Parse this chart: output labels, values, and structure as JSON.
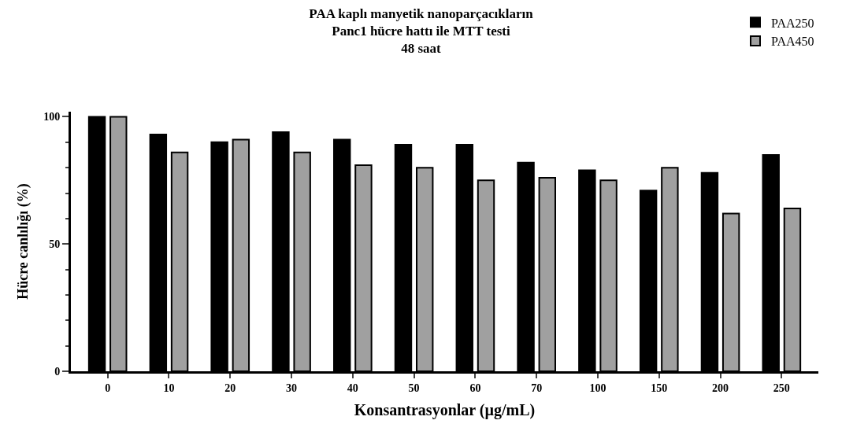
{
  "chart_data": {
    "type": "bar",
    "title": "PAA kaplı manyetik nanoparçacıkların\nPanc1 hücre hattı ile MTT testi\n48 saat",
    "xlabel": "Konsantrasyonlar (µg/mL)",
    "ylabel": "Hücre canlılığı (%)",
    "categories": [
      "0",
      "10",
      "20",
      "30",
      "40",
      "50",
      "60",
      "70",
      "100",
      "150",
      "200",
      "250"
    ],
    "series": [
      {
        "name": "PAA250",
        "color": "#000000",
        "values": [
          100,
          93,
          90,
          94,
          91,
          89,
          89,
          82,
          79,
          71,
          78,
          85
        ]
      },
      {
        "name": "PAA450",
        "color": "#a0a0a0",
        "values": [
          100,
          86,
          91,
          86,
          81,
          80,
          75,
          76,
          75,
          80,
          62,
          64
        ]
      }
    ],
    "ylim": [
      0,
      102
    ],
    "yticks": [
      0,
      50,
      100
    ],
    "legend": "top right"
  }
}
